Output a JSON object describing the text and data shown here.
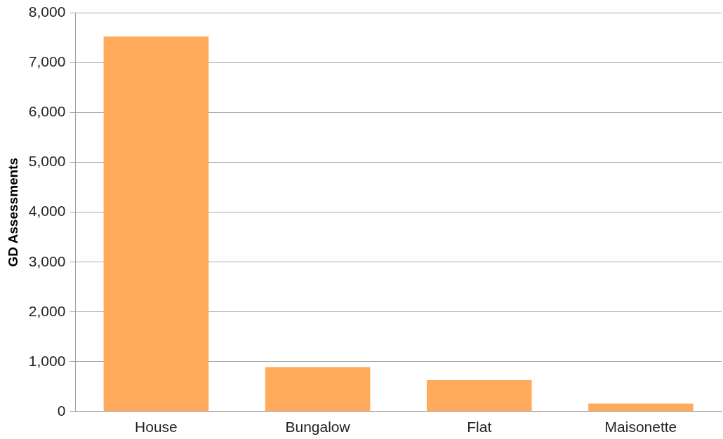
{
  "chart_data": {
    "type": "bar",
    "ylabel": "GD Assessments",
    "categories": [
      "House",
      "Bungalow",
      "Flat",
      "Maisonette"
    ],
    "values": [
      7530,
      890,
      630,
      160
    ],
    "color": "#ffab5b",
    "ylim": [
      0,
      8000
    ],
    "yticks": [
      {
        "value": 0,
        "label": "0"
      },
      {
        "value": 1000,
        "label": "1,000"
      },
      {
        "value": 2000,
        "label": "2,000"
      },
      {
        "value": 3000,
        "label": "3,000"
      },
      {
        "value": 4000,
        "label": "4,000"
      },
      {
        "value": 5000,
        "label": "5,000"
      },
      {
        "value": 6000,
        "label": "6,000"
      },
      {
        "value": 7000,
        "label": "7,000"
      },
      {
        "value": 8000,
        "label": "8,000"
      }
    ],
    "grid": "y",
    "legend": false
  }
}
